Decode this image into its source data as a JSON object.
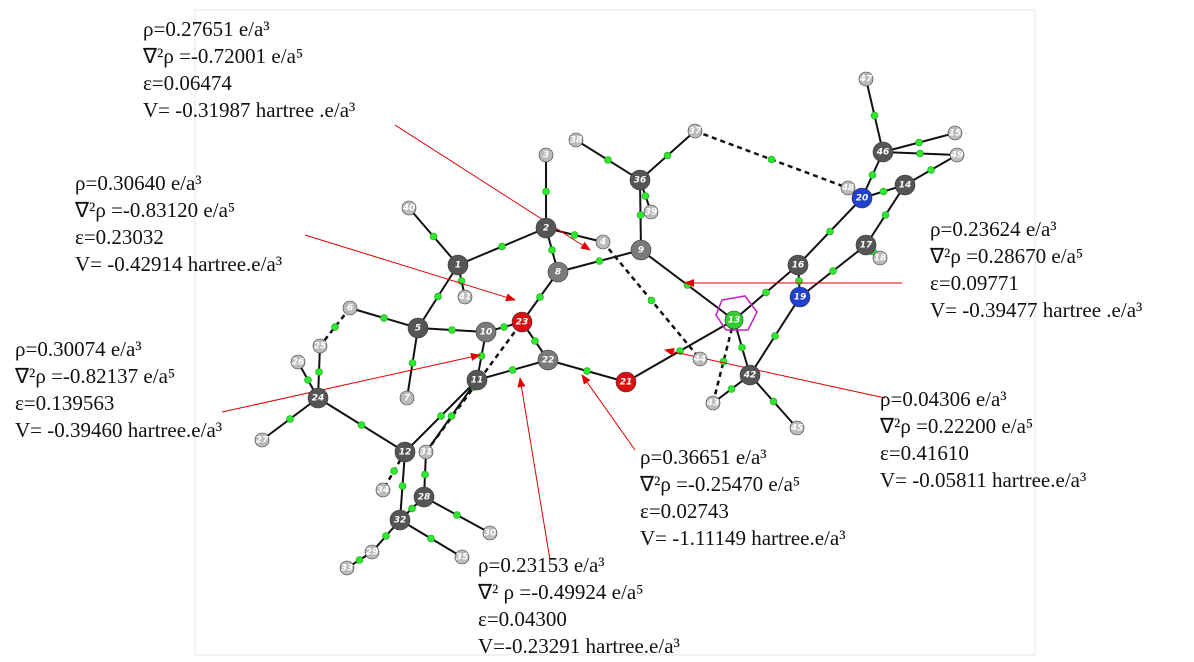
{
  "annotations": [
    {
      "lines": [
        "ρ=0.27651 e/a³",
        "∇²ρ =-0.72001 e/a⁵",
        "ε=0.06474",
        "V= -0.31987 hartree .e/a³"
      ]
    },
    {
      "lines": [
        "ρ=0.30640 e/a³",
        "∇²ρ =-0.83120 e/a⁵",
        "ε=0.23032",
        "V= -0.42914 hartree.e/a³"
      ]
    },
    {
      "lines": [
        "ρ=0.30074 e/a³",
        "∇²ρ =-0.82137 e/a⁵",
        "ε=0.139563",
        "V= -0.39460 hartree.e/a³"
      ]
    },
    {
      "lines": [
        "ρ=0.23624 e/a³",
        "∇²ρ =0.28670 e/a⁵",
        "ε=0.09771",
        "V= -0.39477 hartree .e/a³"
      ]
    },
    {
      "lines": [
        "ρ=0.04306 e/a³",
        "∇²ρ =0.22200 e/a⁵",
        "ε=0.41610",
        "V= -0.05811 hartree.e/a³"
      ]
    },
    {
      "lines": [
        "ρ=0.36651 e/a³",
        "∇²ρ =-0.25470 e/a⁵",
        "ε=0.02743",
        "V= -1.11149 hartree.e/a³"
      ]
    },
    {
      "lines": [
        "ρ=0.23153 e/a³",
        "∇² ρ =-0.49924 e/a⁵",
        "ε=0.04300",
        "V=-0.23291 hartree.e/a³"
      ]
    }
  ],
  "atoms": [
    "1",
    "2",
    "3",
    "4",
    "5",
    "6",
    "7",
    "8",
    "9",
    "10",
    "11",
    "12",
    "13",
    "14",
    "15",
    "16",
    "17",
    "18",
    "19",
    "20",
    "21",
    "22",
    "23",
    "24",
    "25",
    "26",
    "27",
    "28",
    "29",
    "30",
    "31",
    "32",
    "33",
    "34",
    "35",
    "36",
    "37",
    "38",
    "39",
    "40",
    "41",
    "42",
    "43",
    "44",
    "45",
    "46",
    "47",
    "48",
    "49"
  ]
}
